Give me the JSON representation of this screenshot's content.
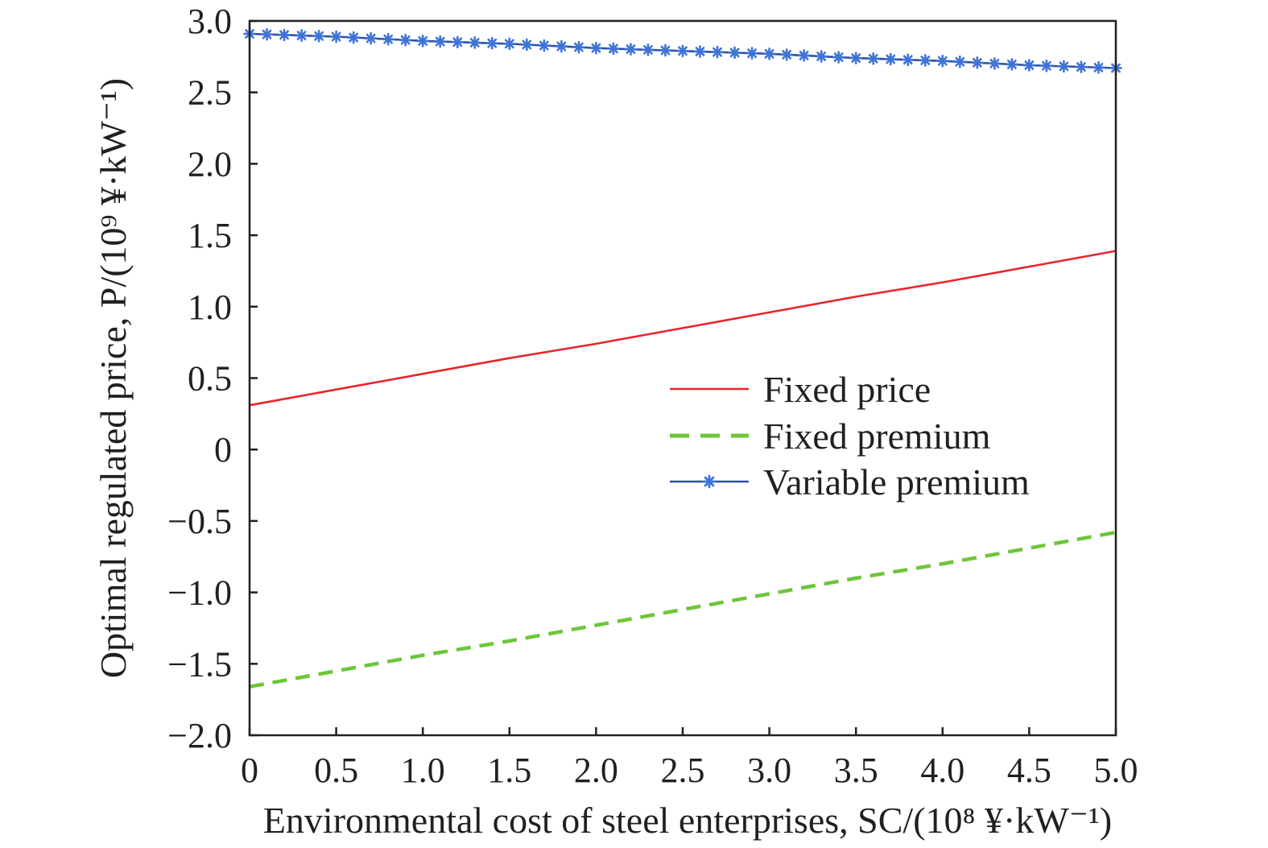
{
  "chart_data": {
    "type": "line",
    "xlabel": "Environmental cost of steel enterprises, SC/(10⁸ ¥·kW⁻¹)",
    "ylabel": "Optimal regulated price, P/(10⁹ ¥·kW⁻¹)",
    "xlim": [
      0,
      5
    ],
    "ylim": [
      -2,
      3
    ],
    "x_ticks": [
      0,
      0.5,
      1,
      1.5,
      2,
      2.5,
      3,
      3.5,
      4,
      4.5,
      5
    ],
    "x_tick_labels": [
      "0",
      "0.5",
      "1.0",
      "1.5",
      "2.0",
      "2.5",
      "3.0",
      "3.5",
      "4.0",
      "4.5",
      "5.0"
    ],
    "y_ticks": [
      3,
      2.5,
      2,
      1.5,
      1,
      0.5,
      0,
      -0.5,
      -1,
      -1.5,
      -2
    ],
    "y_tick_labels": [
      "3.0",
      "2.5",
      "2.0",
      "1.5",
      "1.0",
      "0.5",
      "0",
      "−0.5",
      "−1.0",
      "−1.5",
      "−2.0"
    ],
    "grid": false,
    "legend_position": "center-right",
    "x": [
      0,
      0.5,
      1,
      1.5,
      2,
      2.5,
      3,
      3.5,
      4,
      4.5,
      5
    ],
    "series": [
      {
        "name": "Fixed price",
        "color": "#e8262b",
        "style": "solid",
        "marker": "none",
        "values": [
          0.31,
          0.42,
          0.53,
          0.64,
          0.74,
          0.85,
          0.96,
          1.07,
          1.17,
          1.28,
          1.39
        ]
      },
      {
        "name": "Fixed premium",
        "color": "#6cc63a",
        "style": "dashed",
        "marker": "none",
        "values": [
          -1.66,
          -1.55,
          -1.44,
          -1.34,
          -1.23,
          -1.12,
          -1.01,
          -0.9,
          -0.8,
          -0.69,
          -0.58
        ]
      },
      {
        "name": "Variable premium",
        "color": "#2e4fa3",
        "marker_color": "#3f74d6",
        "style": "solid",
        "marker": "asterisk",
        "values": [
          2.91,
          2.89,
          2.86,
          2.84,
          2.81,
          2.79,
          2.77,
          2.74,
          2.72,
          2.69,
          2.67
        ]
      }
    ]
  }
}
